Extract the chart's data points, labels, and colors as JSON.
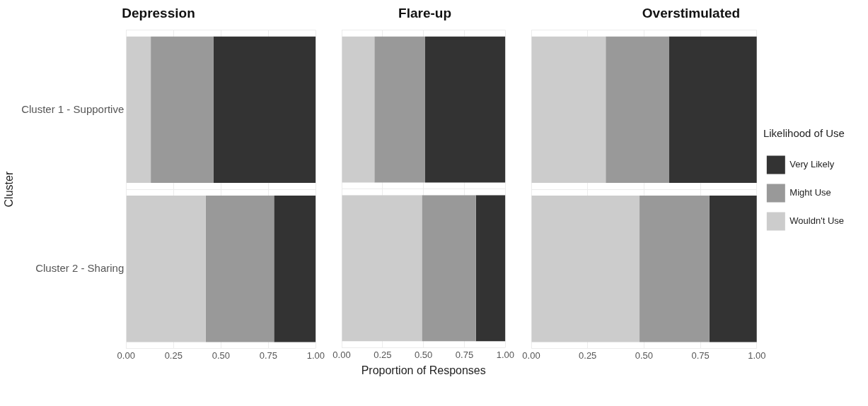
{
  "chart_data": [
    {
      "type": "bar",
      "orientation": "horizontal",
      "stacked": true,
      "title": "Depression",
      "ylabel": "Cluster",
      "categories": [
        "Cluster 1 - Supportive",
        "Cluster 2 - Sharing"
      ],
      "series": [
        {
          "color": "#cccccc",
          "values": [
            0.13,
            0.42
          ]
        },
        {
          "color": "#999999",
          "values": [
            0.33,
            0.36
          ]
        },
        {
          "color": "#333333",
          "values": [
            0.54,
            0.22
          ]
        }
      ],
      "xlim": [
        0,
        1
      ],
      "xticks": [
        {
          "value": 0,
          "label": "0.00"
        },
        {
          "value": 0.25,
          "label": "0.25"
        },
        {
          "value": 0.5,
          "label": "0.50"
        },
        {
          "value": 0.75,
          "label": "0.75"
        },
        {
          "value": 1,
          "label": "1.00"
        }
      ],
      "grid": true,
      "legend": false
    },
    {
      "type": "bar",
      "orientation": "horizontal",
      "stacked": true,
      "title": "Flare-up",
      "xlabel": "Proportion of Responses",
      "categories": [
        null,
        null
      ],
      "series": [
        {
          "color": "#cccccc",
          "values": [
            0.2,
            0.49
          ]
        },
        {
          "color": "#999999",
          "values": [
            0.31,
            0.33
          ]
        },
        {
          "color": "#333333",
          "values": [
            0.49,
            0.18
          ]
        }
      ],
      "xlim": [
        0,
        1
      ],
      "xticks": [
        {
          "value": 0,
          "label": "0.00"
        },
        {
          "value": 0.25,
          "label": "0.25"
        },
        {
          "value": 0.5,
          "label": "0.50"
        },
        {
          "value": 0.75,
          "label": "0.75"
        },
        {
          "value": 1,
          "label": "1.00"
        }
      ],
      "grid": true,
      "legend": false,
      "tick_labels": "x"
    },
    {
      "type": "bar",
      "orientation": "horizontal",
      "stacked": true,
      "title": "Overstimulated",
      "legend_title": "Likelihood of Use",
      "categories": [
        null,
        null
      ],
      "series": [
        {
          "name": "Wouldn't Use",
          "color": "#cccccc",
          "values": [
            0.33,
            0.48
          ]
        },
        {
          "name": "Might Use",
          "color": "#999999",
          "values": [
            0.28,
            0.31
          ]
        },
        {
          "name": "Very Likely",
          "color": "#333333",
          "values": [
            0.39,
            0.21
          ]
        }
      ],
      "xlim": [
        0,
        1
      ],
      "xticks": [
        {
          "value": 0,
          "label": "0.00"
        },
        {
          "value": 0.25,
          "label": "0.25"
        },
        {
          "value": 0.5,
          "label": "0.50"
        },
        {
          "value": 0.75,
          "label": "0.75"
        },
        {
          "value": 1,
          "label": "1.00"
        }
      ],
      "grid": true,
      "legend": "right",
      "tick_labels": "x"
    }
  ]
}
